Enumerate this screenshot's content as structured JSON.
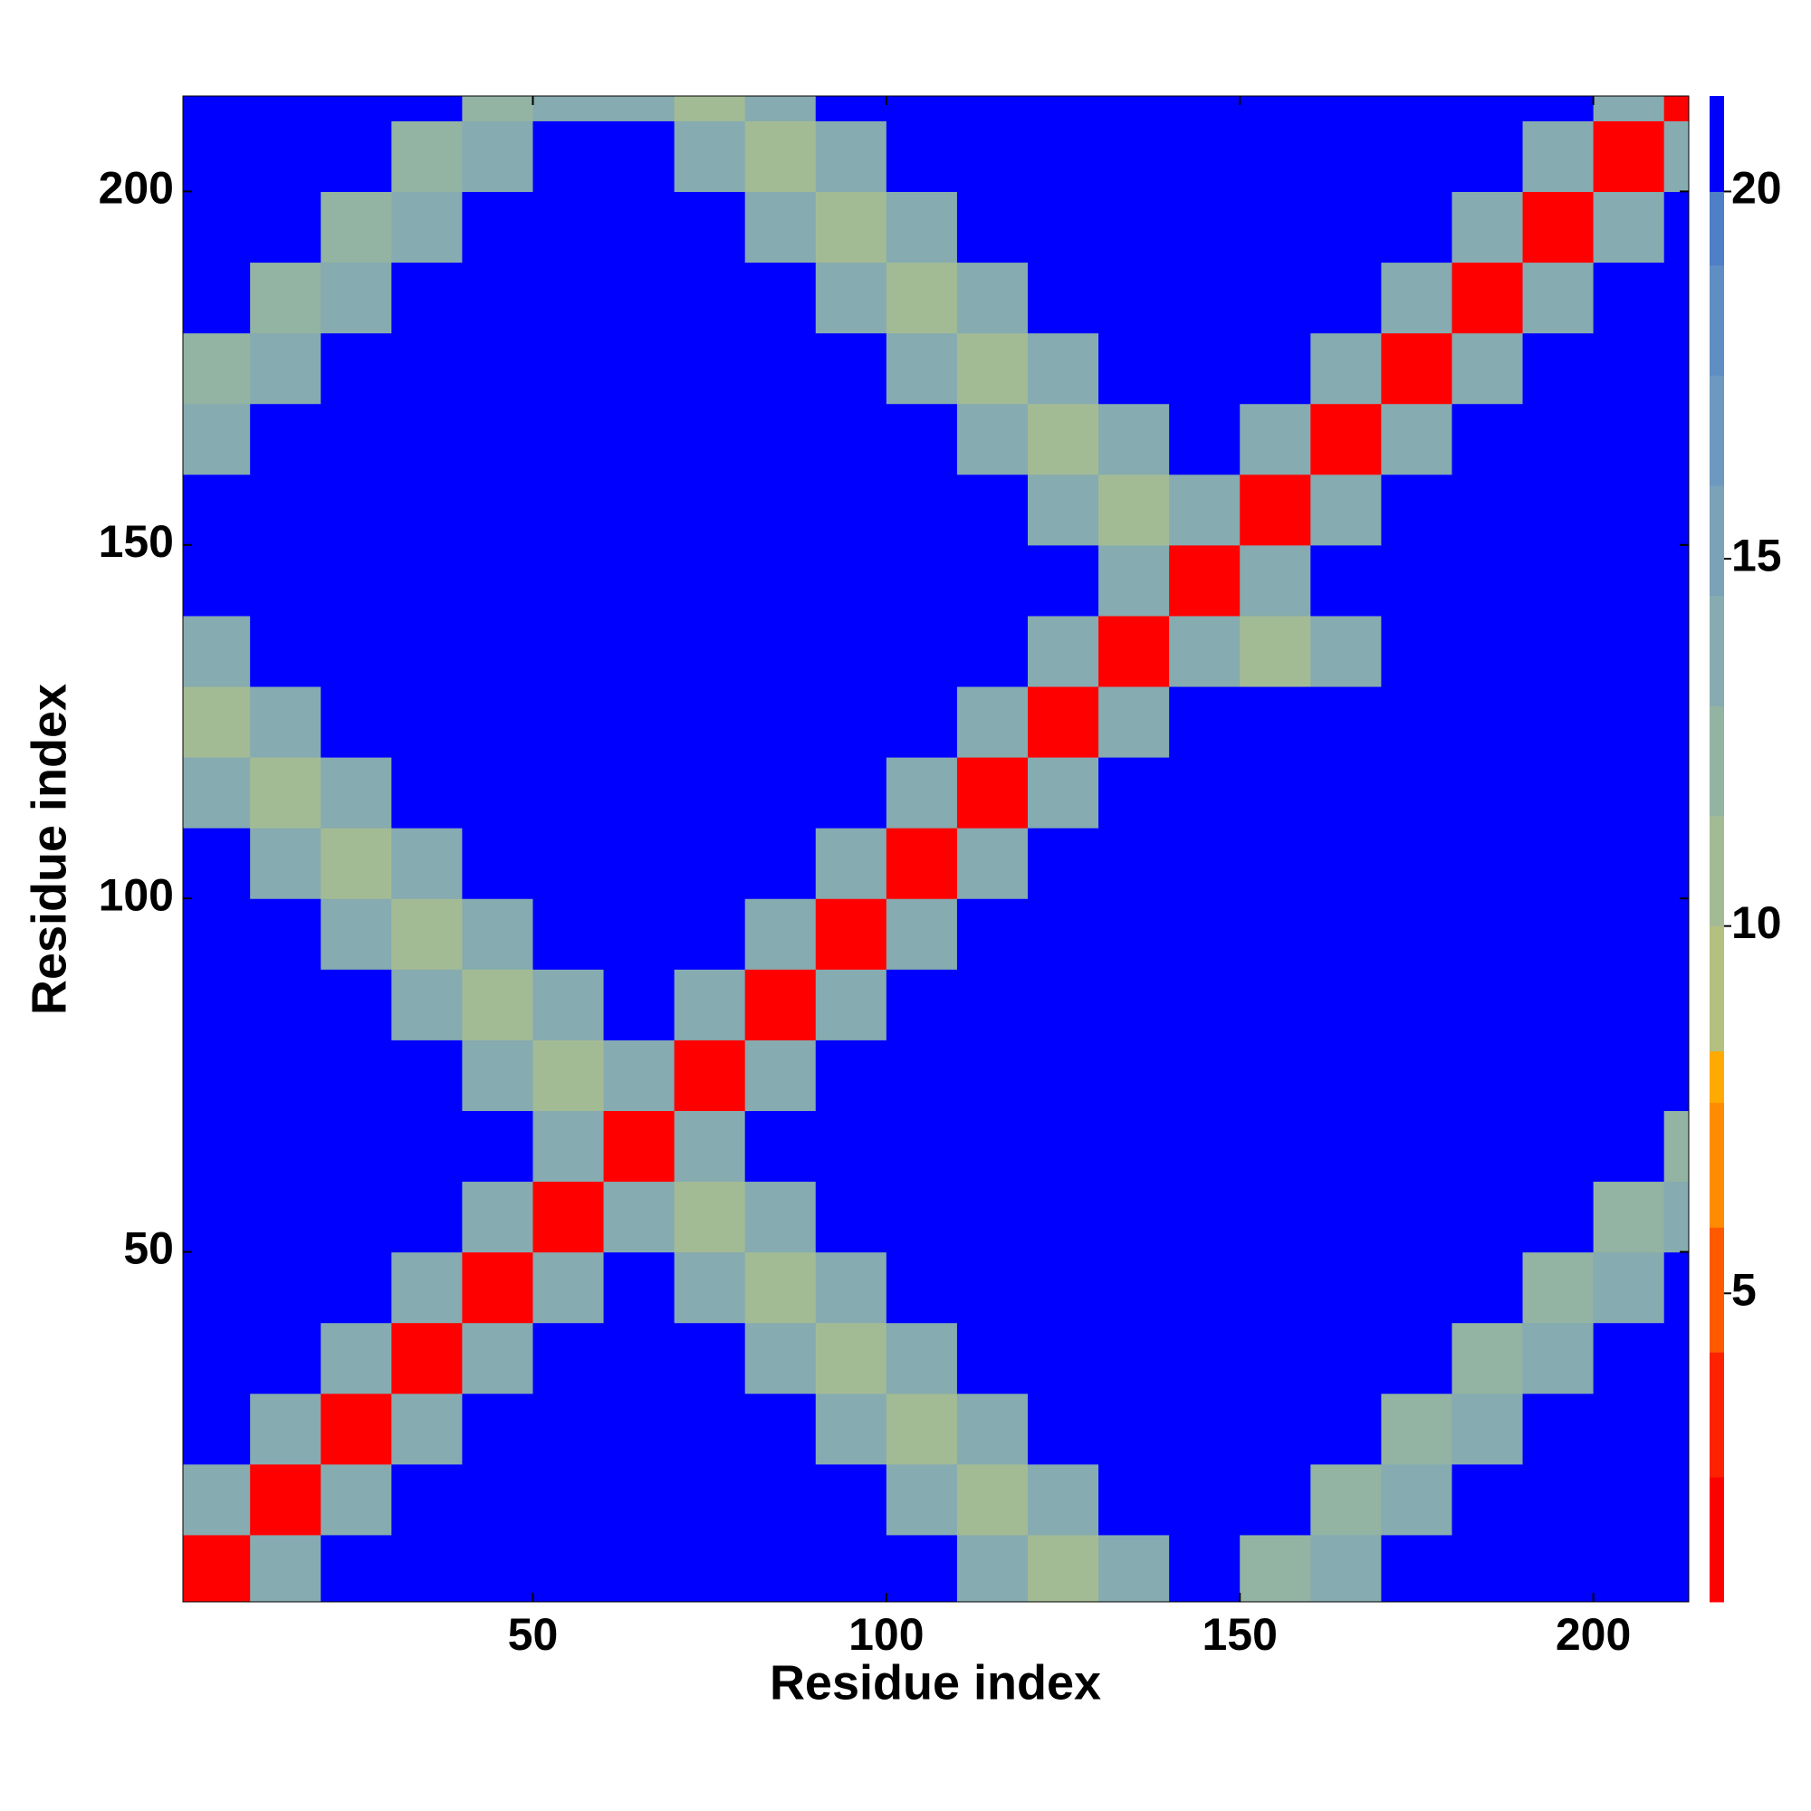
{
  "chart_data": {
    "type": "heatmap",
    "xlabel": "Residue index",
    "ylabel": "Residue index",
    "x": [
      5,
      15,
      25,
      35,
      45,
      55,
      65,
      75,
      85,
      95,
      105,
      115,
      125,
      135,
      145,
      155,
      165,
      175,
      185,
      195,
      205,
      215
    ],
    "y": [
      5,
      15,
      25,
      35,
      45,
      55,
      65,
      75,
      85,
      95,
      105,
      115,
      125,
      135,
      145,
      155,
      165,
      175,
      185,
      195,
      205,
      215
    ],
    "z": [
      [
        1,
        13,
        21,
        21,
        21,
        21,
        21,
        21,
        21,
        21,
        21,
        14,
        11,
        14,
        21,
        12,
        14,
        21,
        21,
        21,
        21,
        21
      ],
      [
        13,
        1,
        13,
        21,
        21,
        21,
        21,
        21,
        21,
        21,
        14,
        11,
        14,
        21,
        21,
        21,
        12,
        14,
        21,
        21,
        21,
        21
      ],
      [
        21,
        13,
        1,
        13,
        21,
        21,
        21,
        21,
        21,
        14,
        11,
        14,
        21,
        21,
        21,
        21,
        21,
        12,
        14,
        21,
        21,
        21
      ],
      [
        21,
        21,
        13,
        1,
        13,
        21,
        21,
        21,
        14,
        11,
        14,
        21,
        21,
        21,
        21,
        21,
        21,
        21,
        12,
        14,
        21,
        21
      ],
      [
        21,
        21,
        21,
        13,
        1,
        13,
        21,
        14,
        11,
        14,
        21,
        21,
        21,
        21,
        21,
        21,
        21,
        21,
        21,
        12,
        14,
        21
      ],
      [
        21,
        21,
        21,
        21,
        13,
        1,
        13,
        11,
        14,
        21,
        21,
        21,
        21,
        21,
        21,
        21,
        21,
        21,
        21,
        21,
        12,
        14
      ],
      [
        21,
        21,
        21,
        21,
        21,
        13,
        1,
        13,
        21,
        21,
        21,
        21,
        21,
        21,
        21,
        21,
        21,
        21,
        21,
        21,
        21,
        12
      ],
      [
        21,
        21,
        21,
        21,
        14,
        11,
        13,
        1,
        13,
        21,
        21,
        21,
        21,
        21,
        21,
        21,
        21,
        21,
        21,
        21,
        21,
        21
      ],
      [
        21,
        21,
        21,
        14,
        11,
        14,
        21,
        13,
        1,
        13,
        21,
        21,
        21,
        21,
        21,
        21,
        21,
        21,
        21,
        21,
        21,
        21
      ],
      [
        21,
        21,
        14,
        11,
        14,
        21,
        21,
        21,
        13,
        1,
        13,
        21,
        21,
        21,
        21,
        21,
        21,
        21,
        21,
        21,
        21,
        21
      ],
      [
        21,
        14,
        11,
        14,
        21,
        21,
        21,
        21,
        21,
        13,
        1,
        13,
        21,
        21,
        21,
        21,
        21,
        21,
        21,
        21,
        21,
        21
      ],
      [
        14,
        11,
        14,
        21,
        21,
        21,
        21,
        21,
        21,
        21,
        13,
        1,
        13,
        21,
        21,
        21,
        21,
        21,
        21,
        21,
        21,
        21
      ],
      [
        11,
        14,
        21,
        21,
        21,
        21,
        21,
        21,
        21,
        21,
        21,
        13,
        1,
        13,
        21,
        21,
        21,
        21,
        21,
        21,
        21,
        21
      ],
      [
        14,
        21,
        21,
        21,
        21,
        21,
        21,
        21,
        21,
        21,
        21,
        21,
        13,
        1,
        13,
        11,
        14,
        21,
        21,
        21,
        21,
        21
      ],
      [
        21,
        21,
        21,
        21,
        21,
        21,
        21,
        21,
        21,
        21,
        21,
        21,
        21,
        13,
        1,
        13,
        21,
        21,
        21,
        21,
        21,
        21
      ],
      [
        21,
        21,
        21,
        21,
        21,
        21,
        21,
        21,
        21,
        21,
        21,
        21,
        14,
        11,
        13,
        1,
        13,
        21,
        21,
        21,
        21,
        21
      ],
      [
        13,
        21,
        21,
        21,
        21,
        21,
        21,
        21,
        21,
        21,
        21,
        14,
        11,
        14,
        21,
        13,
        1,
        13,
        21,
        21,
        21,
        21
      ],
      [
        12,
        13,
        21,
        21,
        21,
        21,
        21,
        21,
        21,
        21,
        14,
        11,
        14,
        21,
        21,
        21,
        13,
        1,
        13,
        21,
        21,
        21
      ],
      [
        21,
        12,
        13,
        21,
        21,
        21,
        21,
        21,
        21,
        14,
        11,
        14,
        21,
        21,
        21,
        21,
        21,
        13,
        1,
        13,
        21,
        21
      ],
      [
        21,
        21,
        12,
        13,
        21,
        21,
        21,
        21,
        14,
        11,
        14,
        21,
        21,
        21,
        21,
        21,
        21,
        21,
        13,
        1,
        13,
        21
      ],
      [
        21,
        21,
        21,
        12,
        13,
        21,
        21,
        14,
        11,
        14,
        21,
        21,
        21,
        21,
        21,
        21,
        21,
        21,
        21,
        13,
        1,
        13
      ],
      [
        21,
        21,
        21,
        21,
        12,
        13,
        14,
        11,
        14,
        21,
        21,
        21,
        21,
        21,
        21,
        21,
        21,
        21,
        21,
        21,
        13,
        1
      ]
    ],
    "xlim": [
      0.5,
      213.5
    ],
    "ylim": [
      0.5,
      213.5
    ],
    "xticks": [
      50,
      100,
      150,
      200
    ],
    "yticks": [
      50,
      100,
      150,
      200
    ],
    "colorbar": {
      "lim": [
        0.8,
        21.3
      ],
      "ticks": [
        5,
        10,
        15,
        20
      ],
      "levels": [
        0.8,
        2.5,
        4.2,
        5.9,
        7.6,
        8.3,
        10,
        11.5,
        13,
        14.5,
        16,
        17.5,
        19,
        20,
        21.3
      ],
      "colors": [
        "#ff0000",
        "#ff2200",
        "#ff5a00",
        "#ff8c00",
        "#ffaa00",
        "#b4c080",
        "#a3bb95",
        "#93b3a3",
        "#86abb0",
        "#7aa2b8",
        "#6d98bf",
        "#5f8ec4",
        "#4f7fc6",
        "#0000ff"
      ]
    }
  }
}
